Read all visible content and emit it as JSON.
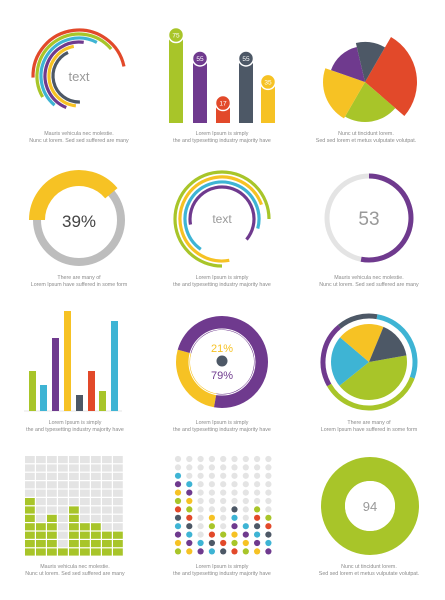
{
  "colors": {
    "green": "#a8c529",
    "purple": "#6f3a8e",
    "orange_red": "#e2492a",
    "yellow": "#f6c224",
    "slate": "#4d5866",
    "cyan": "#3eb4d4",
    "gray": "#bdbdbd",
    "light_gray": "#e4e4e4",
    "text_gray": "#8a8a8a"
  },
  "chart_data": [
    {
      "type": "radial-arcs",
      "center_label": "text",
      "series_colors": [
        "#e2492a",
        "#a8c529",
        "#3eb4d4",
        "#6f3a8e",
        "#f6c224",
        "#4d5866"
      ],
      "caption": [
        "Mauris vehicula nec molestie.",
        "Nunc ut  lorem. Sed sed  suffered  are many"
      ]
    },
    {
      "type": "bar",
      "values": [
        75,
        55,
        17,
        55,
        35
      ],
      "data_labels": [
        "75",
        "55",
        "17",
        "55",
        "35"
      ],
      "colors": [
        "#a8c529",
        "#6f3a8e",
        "#e2492a",
        "#4d5866",
        "#f6c224"
      ],
      "caption": [
        "Lorem Ipsum is simply",
        "the  and typesetting industry majority have"
      ]
    },
    {
      "type": "pie",
      "values": [
        28,
        22,
        22,
        16,
        12
      ],
      "colors": [
        "#e2492a",
        "#a8c529",
        "#f6c224",
        "#6f3a8e",
        "#4d5866"
      ],
      "caption": [
        "Nunc ut tincidunt lorem.",
        "Sed sed lorem et metus vulputate volutpat."
      ]
    },
    {
      "type": "donut",
      "value": 39,
      "center_label": "39%",
      "colors": [
        "#f6c224",
        "#bdbdbd"
      ],
      "caption": [
        "There are many  of",
        "Lorem Ipsum  have suffered  in some form"
      ]
    },
    {
      "type": "radial-arcs",
      "center_label": "text",
      "series_colors": [
        "#a8c529",
        "#f6c224",
        "#3eb4d4",
        "#6f3a8e"
      ],
      "caption": [
        "Lorem Ipsum is simply",
        "the  and typesetting industry majority have"
      ]
    },
    {
      "type": "donut",
      "value": 53,
      "center_label": "53",
      "colors": [
        "#6f3a8e",
        "#e4e4e4"
      ],
      "caption": [
        "Mauris vehicula nec molestie.",
        "Nunc ut  lorem. Sed sed  suffered  are many"
      ]
    },
    {
      "type": "bar",
      "values": [
        40,
        26,
        73,
        100,
        16,
        40,
        20,
        90
      ],
      "colors": [
        "#a8c529",
        "#3eb4d4",
        "#6f3a8e",
        "#f6c224",
        "#4d5866",
        "#e2492a",
        "#a8c529",
        "#3eb4d4"
      ],
      "caption": [
        "Lorem Ipsum is simply",
        "the  and typesetting industry majority have"
      ]
    },
    {
      "type": "donut",
      "values": [
        79,
        21
      ],
      "labels": [
        "79%",
        "21%"
      ],
      "colors": [
        "#6f3a8e",
        "#f6c224"
      ],
      "caption": [
        "Lorem Ipsum is simply",
        "the  and typesetting industry majority have"
      ]
    },
    {
      "type": "pie",
      "values": [
        42,
        22,
        20,
        16
      ],
      "colors": [
        "#a8c529",
        "#3eb4d4",
        "#f6c224",
        "#4d5866"
      ],
      "ring_colors": [
        "#3eb4d4",
        "#a8c529",
        "#6f3a8e",
        "#4d5866"
      ],
      "caption": [
        "There are many  of",
        "Lorem Ipsum  have suffered  in some form"
      ]
    },
    {
      "type": "heatmap",
      "grid": {
        "columns": 9,
        "rows": 12
      },
      "column_heights": [
        7,
        4,
        5,
        1,
        6,
        4,
        4,
        3,
        3
      ],
      "colors": [
        "#a8c529",
        "#e4e4e4"
      ],
      "caption": [
        "Mauris vehicula nec molestie.",
        "Nunc ut  lorem. Sed sed  suffered  are many"
      ]
    },
    {
      "type": "dot-matrix",
      "grid": {
        "columns": 9,
        "rows": 12
      },
      "column_heights": [
        10,
        9,
        2,
        5,
        3,
        6,
        4,
        6,
        5
      ],
      "colors": [
        "#a8c529",
        "#f6c224",
        "#6f3a8e",
        "#3eb4d4",
        "#4d5866",
        "#e2492a",
        "#e4e4e4"
      ],
      "caption": [
        "Lorem Ipsum is simply",
        "the  and typesetting industry majority have"
      ]
    },
    {
      "type": "donut",
      "center_label": "94",
      "colors": [
        "#a8c529"
      ],
      "caption": [
        "Nunc ut tincidunt lorem.",
        "Sed sed lorem et metus vulputate volutpat."
      ]
    }
  ]
}
